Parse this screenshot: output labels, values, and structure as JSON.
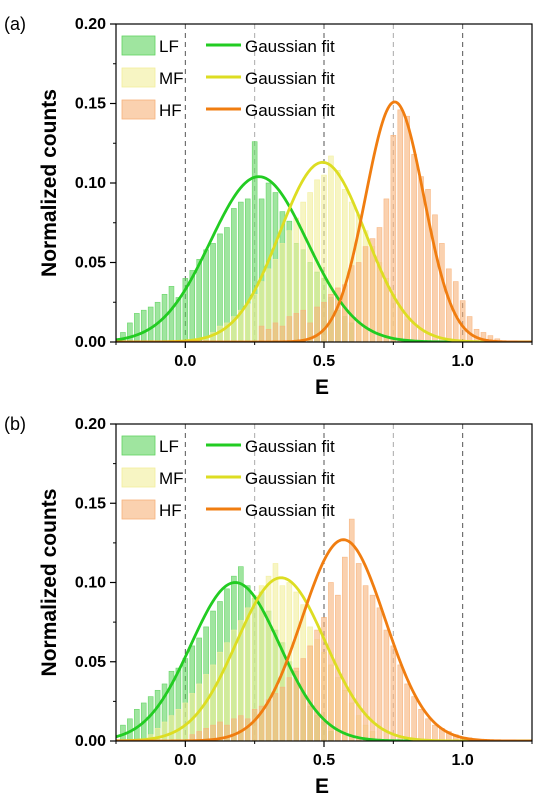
{
  "colors": {
    "LF": "#5fd35f",
    "MF": "#f2ee9b",
    "HF": "#f7b27a",
    "LF_fit": "#22cc22",
    "MF_fit": "#dddd22",
    "HF_fit": "#f07d10"
  },
  "chart_data": [
    {
      "panel": "(a)",
      "type": "bar",
      "xlabel": "E",
      "ylabel": "Normalized counts",
      "xlim": [
        -0.25,
        1.25
      ],
      "ylim": [
        0,
        0.2
      ],
      "xticks": [
        "0.0",
        "0.5",
        "1.0"
      ],
      "yticks": [
        "0.00",
        "0.05",
        "0.10",
        "0.15",
        "0.20"
      ],
      "vlines": [
        0,
        0.25,
        0.5,
        0.75,
        1.0
      ],
      "legend": [
        {
          "label": "LF",
          "fit_label": "Gaussian fit"
        },
        {
          "label": "MF",
          "fit_label": "Gaussian fit"
        },
        {
          "label": "HF",
          "fit_label": "Gaussian fit"
        }
      ],
      "series": [
        {
          "name": "LF",
          "x": [
            -0.225,
            -0.2,
            -0.175,
            -0.15,
            -0.125,
            -0.1,
            -0.075,
            -0.05,
            -0.025,
            0.0,
            0.025,
            0.05,
            0.075,
            0.1,
            0.125,
            0.15,
            0.175,
            0.2,
            0.225,
            0.25,
            0.275,
            0.3,
            0.325,
            0.35,
            0.375,
            0.4,
            0.425,
            0.45,
            0.475,
            0.5,
            0.525,
            0.55,
            0.575,
            0.6
          ],
          "values": [
            0.006,
            0.012,
            0.018,
            0.02,
            0.022,
            0.025,
            0.03,
            0.035,
            0.028,
            0.04,
            0.045,
            0.052,
            0.058,
            0.062,
            0.068,
            0.072,
            0.084,
            0.088,
            0.09,
            0.126,
            0.09,
            0.1,
            0.094,
            0.082,
            0.076,
            0.062,
            0.058,
            0.05,
            0.044,
            0.04,
            0.028,
            0.02,
            0.016,
            0.012
          ]
        },
        {
          "name": "MF",
          "x": [
            0.075,
            0.1,
            0.125,
            0.15,
            0.175,
            0.2,
            0.225,
            0.25,
            0.275,
            0.3,
            0.325,
            0.35,
            0.375,
            0.4,
            0.425,
            0.45,
            0.475,
            0.5,
            0.525,
            0.55,
            0.575,
            0.6,
            0.625,
            0.65,
            0.675,
            0.7,
            0.725,
            0.75,
            0.775,
            0.8
          ],
          "values": [
            0.003,
            0.006,
            0.01,
            0.012,
            0.016,
            0.02,
            0.024,
            0.03,
            0.038,
            0.046,
            0.052,
            0.062,
            0.07,
            0.078,
            0.088,
            0.094,
            0.102,
            0.105,
            0.117,
            0.108,
            0.096,
            0.088,
            0.08,
            0.07,
            0.06,
            0.05,
            0.04,
            0.03,
            0.022,
            0.014
          ]
        },
        {
          "name": "HF",
          "x": [
            0.275,
            0.3,
            0.325,
            0.35,
            0.375,
            0.4,
            0.425,
            0.45,
            0.475,
            0.5,
            0.525,
            0.55,
            0.575,
            0.6,
            0.625,
            0.65,
            0.675,
            0.7,
            0.725,
            0.75,
            0.775,
            0.8,
            0.825,
            0.85,
            0.875,
            0.9,
            0.925,
            0.95,
            0.975,
            1.0,
            1.025,
            1.05,
            1.075,
            1.1,
            1.125
          ],
          "values": [
            0.01,
            0.008,
            0.012,
            0.01,
            0.016,
            0.018,
            0.02,
            0.012,
            0.022,
            0.025,
            0.03,
            0.034,
            0.036,
            0.048,
            0.05,
            0.06,
            0.065,
            0.072,
            0.09,
            0.13,
            0.146,
            0.142,
            0.118,
            0.104,
            0.096,
            0.08,
            0.062,
            0.046,
            0.038,
            0.026,
            0.016,
            0.008,
            0.006,
            0.004,
            0.002
          ]
        }
      ],
      "fits": [
        {
          "name": "LF",
          "amplitude": 0.104,
          "center": 0.265,
          "sigma": 0.175
        },
        {
          "name": "MF",
          "amplitude": 0.113,
          "center": 0.495,
          "sigma": 0.155
        },
        {
          "name": "HF",
          "amplitude": 0.151,
          "center": 0.755,
          "sigma": 0.105
        }
      ]
    },
    {
      "panel": "(b)",
      "type": "bar",
      "xlabel": "E",
      "ylabel": "Normalized counts",
      "xlim": [
        -0.25,
        1.25
      ],
      "ylim": [
        0,
        0.2
      ],
      "xticks": [
        "0.0",
        "0.5",
        "1.0"
      ],
      "yticks": [
        "0.00",
        "0.05",
        "0.10",
        "0.15",
        "0.20"
      ],
      "vlines": [
        0,
        0.25,
        0.5,
        0.75,
        1.0
      ],
      "legend": [
        {
          "label": "LF",
          "fit_label": "Gaussian fit"
        },
        {
          "label": "MF",
          "fit_label": "Gaussian fit"
        },
        {
          "label": "HF",
          "fit_label": "Gaussian fit"
        }
      ],
      "series": [
        {
          "name": "LF",
          "x": [
            -0.225,
            -0.2,
            -0.175,
            -0.15,
            -0.125,
            -0.1,
            -0.075,
            -0.05,
            -0.025,
            0.0,
            0.025,
            0.05,
            0.075,
            0.1,
            0.125,
            0.15,
            0.175,
            0.2,
            0.225,
            0.25,
            0.275,
            0.3,
            0.325,
            0.35,
            0.375,
            0.4,
            0.425,
            0.45,
            0.475,
            0.5,
            0.525
          ],
          "values": [
            0.01,
            0.014,
            0.02,
            0.024,
            0.028,
            0.032,
            0.036,
            0.044,
            0.046,
            0.052,
            0.06,
            0.065,
            0.072,
            0.082,
            0.088,
            0.096,
            0.104,
            0.11,
            0.098,
            0.09,
            0.094,
            0.082,
            0.07,
            0.062,
            0.05,
            0.044,
            0.032,
            0.022,
            0.016,
            0.012,
            0.006
          ]
        },
        {
          "name": "MF",
          "x": [
            -0.125,
            -0.1,
            -0.075,
            -0.05,
            -0.025,
            0.0,
            0.025,
            0.05,
            0.075,
            0.1,
            0.125,
            0.15,
            0.175,
            0.2,
            0.225,
            0.25,
            0.275,
            0.3,
            0.325,
            0.35,
            0.375,
            0.4,
            0.425,
            0.45,
            0.475,
            0.5,
            0.525,
            0.55,
            0.575,
            0.6,
            0.625,
            0.65,
            0.675
          ],
          "values": [
            0.004,
            0.008,
            0.012,
            0.016,
            0.02,
            0.024,
            0.03,
            0.036,
            0.042,
            0.048,
            0.056,
            0.062,
            0.07,
            0.076,
            0.084,
            0.092,
            0.098,
            0.104,
            0.112,
            0.098,
            0.1,
            0.094,
            0.086,
            0.072,
            0.064,
            0.056,
            0.048,
            0.04,
            0.032,
            0.024,
            0.016,
            0.01,
            0.006
          ]
        },
        {
          "name": "HF",
          "x": [
            0.025,
            0.05,
            0.075,
            0.1,
            0.125,
            0.15,
            0.175,
            0.2,
            0.225,
            0.25,
            0.275,
            0.3,
            0.325,
            0.35,
            0.375,
            0.4,
            0.425,
            0.45,
            0.475,
            0.5,
            0.525,
            0.55,
            0.575,
            0.6,
            0.625,
            0.65,
            0.675,
            0.7,
            0.725,
            0.75,
            0.775,
            0.8,
            0.825,
            0.85,
            0.875,
            0.9,
            0.925,
            0.95,
            0.975,
            1.0,
            1.025
          ],
          "values": [
            0.004,
            0.006,
            0.008,
            0.01,
            0.012,
            0.01,
            0.014,
            0.016,
            0.014,
            0.02,
            0.022,
            0.026,
            0.03,
            0.034,
            0.04,
            0.046,
            0.052,
            0.06,
            0.07,
            0.078,
            0.1,
            0.092,
            0.116,
            0.14,
            0.112,
            0.098,
            0.092,
            0.084,
            0.07,
            0.06,
            0.048,
            0.036,
            0.028,
            0.02,
            0.014,
            0.01,
            0.008,
            0.006,
            0.004,
            0.002,
            0.002
          ]
        }
      ],
      "fits": [
        {
          "name": "LF",
          "amplitude": 0.1,
          "center": 0.18,
          "sigma": 0.16
        },
        {
          "name": "MF",
          "amplitude": 0.103,
          "center": 0.345,
          "sigma": 0.16
        },
        {
          "name": "HF",
          "amplitude": 0.127,
          "center": 0.57,
          "sigma": 0.15
        }
      ]
    }
  ]
}
